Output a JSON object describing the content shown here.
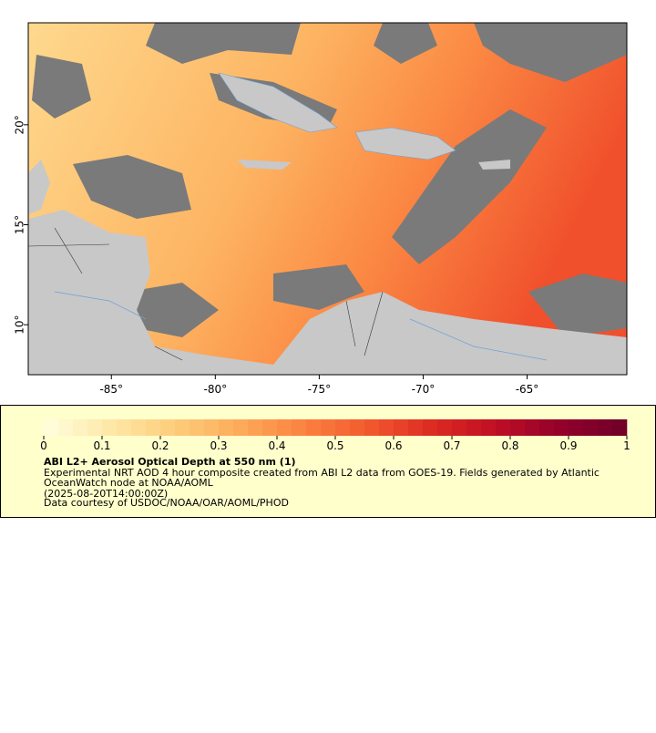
{
  "map": {
    "xlim": [
      -89,
      -60.2
    ],
    "ylim": [
      7.5,
      25.1
    ],
    "xticks": [
      {
        "value": -85,
        "label": "-85°"
      },
      {
        "value": -80,
        "label": "-80°"
      },
      {
        "value": -75,
        "label": "-75°"
      },
      {
        "value": -70,
        "label": "-70°"
      },
      {
        "value": -65,
        "label": "-65°"
      }
    ],
    "yticks": [
      {
        "value": 10,
        "label": "10°"
      },
      {
        "value": 15,
        "label": "15°"
      },
      {
        "value": 20,
        "label": "20°"
      }
    ]
  },
  "colorbar": {
    "range": [
      0,
      1
    ],
    "ticks": [
      0,
      0.1,
      0.2,
      0.3,
      0.4,
      0.5,
      0.6,
      0.7,
      0.8,
      0.9,
      1
    ],
    "colormap": [
      "#ffffe0",
      "#fee8a8",
      "#fdce7c",
      "#fdac5a",
      "#fb8240",
      "#f25a2e",
      "#dc2a22",
      "#be0e24",
      "#92002a",
      "#6e0028"
    ]
  },
  "legend": {
    "title": "ABI L2+ Aerosol Optical Depth at 550 nm (1)",
    "lines": [
      "Experimental NRT AOD 4 hour composite created from ABI L2 data from GOES-19. Fields generated by Atlantic",
      "OceanWatch node at NOAA/AOML",
      "(2025-08-20T14:00:00Z)",
      "Data courtesy of USDOC/NOAA/OAR/AOML/PHOD"
    ]
  }
}
